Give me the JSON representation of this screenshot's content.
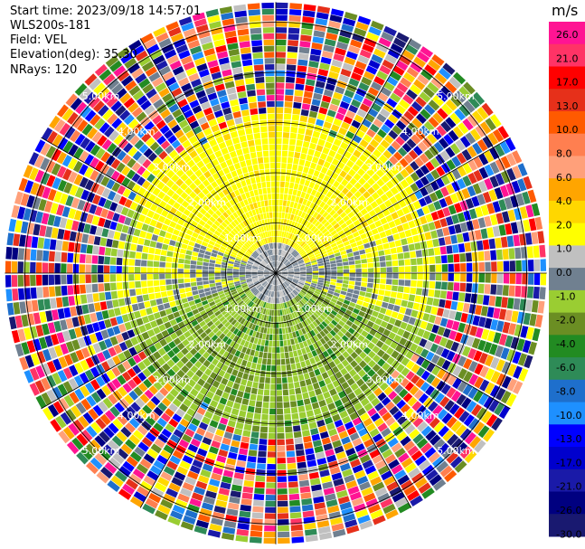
{
  "info": {
    "start_time": "Start time: 2023/09/18 14:57:01",
    "site": "WLS200s-181",
    "field": "Field: VEL",
    "elevation": "Elevation(deg): 35.30",
    "nrays": "NRays: 120"
  },
  "chart_data": {
    "type": "heatmap",
    "projection": "polar-ppi",
    "field": "VEL",
    "units": "m/s",
    "range_rings_km": [
      1.0,
      2.0,
      3.0,
      4.0,
      5.0
    ],
    "ring_labels": [
      "1.00km",
      "2.00km",
      "3.00km",
      "4.00km",
      "5.00km"
    ],
    "max_range_km": 5.4,
    "nrays": 120,
    "colorbar": {
      "ticks": [
        "26.0",
        "21.0",
        "17.0",
        "13.0",
        "10.0",
        "8.0",
        "6.0",
        "4.0",
        "2.0",
        "1.0",
        "0.0",
        "-1.0",
        "-2.0",
        "-4.0",
        "-6.0",
        "-8.0",
        "-10.0",
        "-13.0",
        "-17.0",
        "-21.0",
        "-26.0",
        "-30.0"
      ],
      "colors": [
        "#ff1493",
        "#ff3366",
        "#ff0000",
        "#e6301a",
        "#ff5a00",
        "#ff7f50",
        "#ffa07a",
        "#ffa500",
        "#ffd700",
        "#ffff00",
        "#c0c0c0",
        "#708090",
        "#9acd32",
        "#6b8e23",
        "#228b22",
        "#2e8b57",
        "#1e6fcc",
        "#1e90ff",
        "#0000ff",
        "#0000cd",
        "#1a1aa8",
        "#000080",
        "#191970"
      ]
    },
    "velocity_regions": [
      {
        "range_km": [
          0.0,
          0.5
        ],
        "value": "0.0 to 1.0"
      },
      {
        "sector": "north",
        "range_km": [
          0.5,
          2.9
        ],
        "value": "2.0"
      },
      {
        "sector": "south",
        "range_km": [
          0.5,
          2.9
        ],
        "value": "-2.0 to -4.0"
      },
      {
        "range_km": [
          3.2,
          5.4
        ],
        "value": "noise"
      }
    ]
  }
}
